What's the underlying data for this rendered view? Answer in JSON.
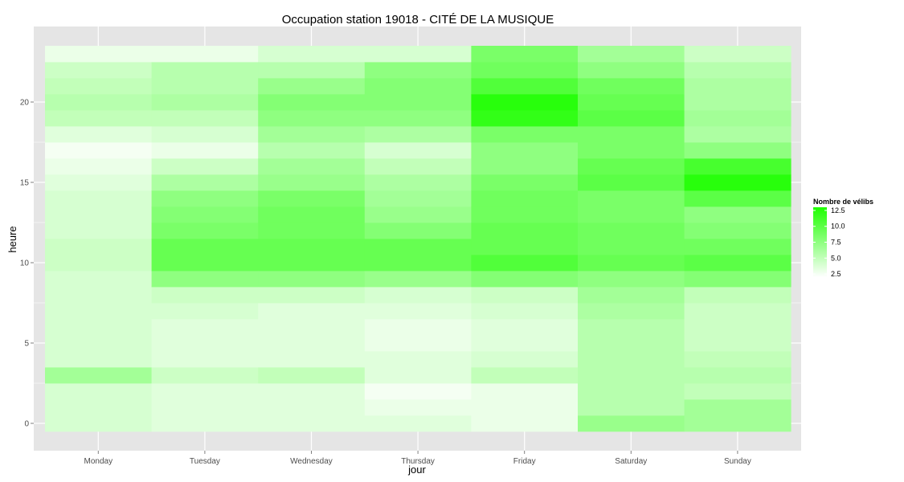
{
  "chart_data": {
    "type": "heatmap",
    "title": "Occupation station 19018 - CITÉ DE LA MUSIQUE",
    "xlabel": "jour",
    "ylabel": "heure",
    "x_categories": [
      "Monday",
      "Tuesday",
      "Wednesday",
      "Thursday",
      "Friday",
      "Saturday",
      "Sunday"
    ],
    "y_ticks": [
      0,
      5,
      10,
      15,
      20
    ],
    "ylim": [
      -0.5,
      23.5
    ],
    "grid": true,
    "legend": {
      "title": "Nombre de vélibs",
      "placement": "right",
      "ticks": [
        12.5,
        10.0,
        7.5,
        5.0,
        2.5
      ],
      "min": 2.0,
      "max": 13.0
    },
    "colors": {
      "low": "#ffffff",
      "high": "#1eff00",
      "panel": "#e5e5e5",
      "grid": "#ffffff"
    },
    "hours": [
      0,
      1,
      2,
      3,
      4,
      5,
      6,
      7,
      8,
      9,
      10,
      11,
      12,
      13,
      14,
      15,
      16,
      17,
      18,
      19,
      20,
      21,
      22,
      23
    ],
    "values": {
      "Monday": [
        4.0,
        4.0,
        4.0,
        6.5,
        4.0,
        4.0,
        4.0,
        4.0,
        4.0,
        4.0,
        4.5,
        4.5,
        4.0,
        4.0,
        4.0,
        3.5,
        3.0,
        2.5,
        3.5,
        5.0,
        5.5,
        5.0,
        4.5,
        3.0
      ],
      "Tuesday": [
        3.5,
        3.5,
        3.5,
        4.5,
        3.5,
        3.5,
        3.5,
        4.0,
        4.5,
        7.5,
        9.5,
        9.5,
        8.5,
        8.0,
        7.5,
        6.0,
        4.5,
        3.0,
        4.0,
        5.0,
        6.0,
        5.5,
        5.5,
        3.0
      ],
      "Wednesday": [
        3.5,
        3.5,
        3.5,
        5.0,
        3.5,
        3.5,
        3.5,
        3.5,
        4.5,
        7.5,
        9.5,
        9.5,
        9.0,
        9.0,
        8.5,
        7.0,
        6.5,
        5.5,
        6.5,
        7.5,
        8.0,
        7.0,
        5.5,
        4.0
      ],
      "Thursday": [
        3.5,
        3.0,
        2.5,
        3.5,
        3.5,
        3.0,
        3.0,
        3.5,
        4.0,
        7.0,
        9.5,
        9.5,
        8.0,
        7.0,
        6.5,
        6.0,
        5.0,
        4.0,
        6.0,
        7.5,
        8.0,
        8.0,
        7.5,
        4.0
      ],
      "Friday": [
        3.0,
        3.0,
        3.0,
        5.0,
        4.0,
        3.5,
        3.5,
        4.0,
        4.5,
        8.0,
        10.5,
        9.5,
        9.5,
        9.0,
        9.0,
        8.5,
        7.5,
        7.5,
        8.5,
        12.0,
        12.5,
        10.5,
        9.0,
        8.5
      ],
      "Saturday": [
        7.0,
        5.5,
        5.5,
        5.5,
        5.5,
        5.5,
        5.5,
        6.0,
        6.5,
        7.5,
        9.5,
        9.0,
        9.0,
        8.5,
        8.5,
        10.0,
        9.5,
        8.5,
        8.5,
        10.0,
        9.5,
        9.0,
        7.5,
        6.5
      ],
      "Sunday": [
        6.5,
        6.5,
        5.0,
        5.5,
        5.0,
        4.5,
        4.5,
        4.5,
        5.0,
        8.0,
        10.0,
        9.0,
        8.0,
        7.5,
        10.0,
        12.5,
        11.0,
        7.5,
        6.0,
        6.5,
        6.0,
        6.0,
        5.5,
        4.5
      ]
    }
  }
}
